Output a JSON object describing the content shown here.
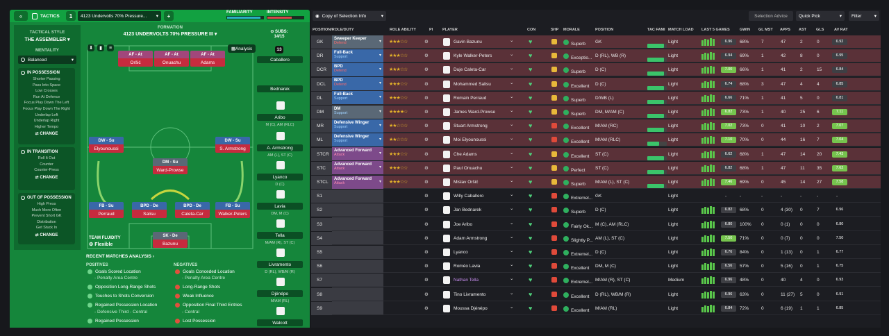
{
  "top": {
    "tab_label": "TACTICS",
    "tactic_number": "1",
    "tactic_name": "4123 Undervolts 70% Pressure...",
    "plus": "+",
    "familiarity_label": "FAMILIARITY",
    "intensity_label": "INTENSITY",
    "familiarity_level": 0.92,
    "intensity_level": 0.68,
    "copy_selection": "Copy of Selection Info",
    "selection_advice": "Selection Advice",
    "quick_pick": "Quick Pick",
    "filter": "Filter",
    "colors": {
      "green": "#12a141",
      "dark": "#0e6e2d"
    }
  },
  "style": {
    "heading": "TACTICAL STYLE",
    "name": "THE ASSEMBLER",
    "mentality_label": "MENTALITY",
    "mentality_value": "Balanced",
    "in_possession": {
      "title": "IN POSSESSION",
      "items": [
        "Shorter Passing",
        "Pass Into Space",
        "Low Crosses",
        "Run At Defence",
        "Focus Play Down The Left",
        "Focus Play Down The Right",
        "Underlap Left",
        "Underlap Right",
        "Higher Tempo"
      ],
      "change": "CHANGE"
    },
    "in_transition": {
      "title": "IN TRANSITION",
      "items": [
        "Roll It Out",
        "Counter",
        "Counter-Press"
      ],
      "change": "CHANGE"
    },
    "out_of_possession": {
      "title": "OUT OF POSSESSION",
      "items": [
        "High Press",
        "Much More Often",
        "Prevent Short GK",
        "Distribution",
        "Get Stuck In"
      ],
      "change": "CHANGE"
    }
  },
  "formation": {
    "label": "FORMATION",
    "name": "4123 UNDERVOLTS 70% PRESSURE III",
    "analysis": "Analysis",
    "subs_label": "SUBS:",
    "subs_value": "14/15",
    "fluidity_label": "TEAM FLUIDITY",
    "fluidity_value": "Flexible",
    "players": [
      {
        "role": "AF - At",
        "name": "Oršić",
        "color": "#a1477b"
      },
      {
        "role": "AF - At",
        "name": "Onuachu",
        "color": "#a1477b"
      },
      {
        "role": "AF - At",
        "name": "Adams",
        "color": "#a1477b"
      },
      {
        "role": "DW - Su",
        "name": "Elyounoussi",
        "color": "#3968a8"
      },
      {
        "role": "DW - Su",
        "name": "S. Armstrong",
        "color": "#3968a8"
      },
      {
        "role": "DM - Su",
        "name": "Ward-Prowse",
        "color": "#5a6876"
      },
      {
        "role": "FB - Su",
        "name": "Perraud",
        "color": "#3968a8"
      },
      {
        "role": "BPD - De",
        "name": "Salisu",
        "color": "#3968a8"
      },
      {
        "role": "BPD - De",
        "name": "Caleta-Car",
        "color": "#3968a8"
      },
      {
        "role": "FB - Su",
        "name": "Walker-Peters",
        "color": "#3968a8"
      },
      {
        "role": "SK - De",
        "name": "Bazunu",
        "color": "#5a6876"
      }
    ],
    "kit_number": "13"
  },
  "subs": [
    {
      "name": "Caballero",
      "pos": "GK"
    },
    {
      "name": "Bednarek",
      "pos": "D (C)"
    },
    {
      "name": "Aribo",
      "pos": "M (C), AM (RLC)"
    },
    {
      "name": "A. Armstrong",
      "pos": "AM (L), ST (C)"
    },
    {
      "name": "Lyanco",
      "pos": "D (C)"
    },
    {
      "name": "Lavia",
      "pos": "DM, M (C)"
    },
    {
      "name": "Tella",
      "pos": "M/AM (R), ST (C)"
    },
    {
      "name": "Livramento",
      "pos": "D (RL), WB/M (R)"
    },
    {
      "name": "Djénépo",
      "pos": "M/AM (RL)"
    },
    {
      "name": "Walcott",
      "pos": ""
    }
  ],
  "analysis": {
    "title": "RECENT MATCHES ANALYSIS",
    "positives_label": "POSITIVES",
    "negatives_label": "NEGATIVES",
    "positives": [
      "Goals Scored Location",
      "- Penalty Area Centre",
      "Opposition Long-Range Shots",
      "Touches to Shots Conversion",
      "Regained Possession Location",
      "- Defensive Third - Central",
      "Regained Possession"
    ],
    "negatives": [
      "Goals Conceded Location",
      "- Penalty Area Centre",
      "Long-Range Shots",
      "Weak Influence",
      "Opposition Final Third Entries",
      "- Central",
      "Lost Possession"
    ]
  },
  "table": {
    "headers": [
      "POSITION/ROLE/DUTY",
      "ROLE ABILITY",
      "PI",
      "PLAYER",
      "CON",
      "SHP",
      "MORALE",
      "POSITION",
      "TAC FAMI",
      "MATCH LOAD",
      "LAST 5 GAMES",
      "GWIN",
      "GL MST",
      "APPS",
      "AST",
      "GLS",
      "AV RAT"
    ],
    "rows": [
      {
        "pos": "GK",
        "role": "Sweeper Keeper",
        "duty": "Defend",
        "stars": "★★★☆☆",
        "name": "Gavin Bazunu",
        "morale": "Superb",
        "position": "GK",
        "load": "Light",
        "rating": "6.96",
        "gwin": "68%",
        "glm": "7",
        "apps": "47",
        "ast": "2",
        "gls": "0",
        "av": "6.92",
        "bg": "#5a3138",
        "rolecol": "#5a6876",
        "ship": "#e8b83a",
        "vcls": "vgray"
      },
      {
        "pos": "DR",
        "role": "Full-Back",
        "duty": "Support",
        "stars": "★★★☆☆",
        "name": "Kyle Walker-Peters",
        "morale": "Exceptio...",
        "position": "D (RL), WB (R)",
        "load": "Light",
        "rating": "6.94",
        "gwin": "69%",
        "glm": "1",
        "apps": "42",
        "ast": "8",
        "gls": "0",
        "av": "6.95",
        "bg": "#5a3138",
        "rolecol": "#3968a8",
        "ship": "#e8b83a",
        "vcls": "vgray"
      },
      {
        "pos": "DCR",
        "role": "BPD",
        "duty": "Defend",
        "stars": "★★★☆☆",
        "name": "Duje Caleta-Car",
        "morale": "Superb",
        "position": "D (C)",
        "load": "Light",
        "rating": "7.00",
        "gwin": "66%",
        "glm": "1",
        "apps": "41",
        "ast": "2",
        "gls": "15",
        "av": "6.84",
        "bg": "#5a3138",
        "rolecol": "#3968a8",
        "ship": "#e8b83a",
        "vcls": "vbright"
      },
      {
        "pos": "DCL",
        "role": "BPD",
        "duty": "Defend",
        "stars": "★★★☆☆",
        "name": "Mohammed Salisu",
        "morale": "Excellent",
        "position": "D (C)",
        "load": "Light",
        "rating": "6.74",
        "gwin": "68%",
        "glm": "3",
        "apps": "47",
        "ast": "4",
        "gls": "4",
        "av": "6.85",
        "bg": "#5a3138",
        "rolecol": "#3968a8",
        "ship": "#e8b83a",
        "vcls": "vgray"
      },
      {
        "pos": "DL",
        "role": "Full-Back",
        "duty": "Support",
        "stars": "★★★☆☆",
        "name": "Romain Perraud",
        "morale": "Superb",
        "position": "D/WB (L)",
        "load": "Light",
        "rating": "6.66",
        "gwin": "71%",
        "glm": "1",
        "apps": "41",
        "ast": "5",
        "gls": "0",
        "av": "6.81",
        "bg": "#5a3138",
        "rolecol": "#3968a8",
        "ship": "#e8b83a",
        "vcls": "vgray"
      },
      {
        "pos": "DM",
        "role": "DM",
        "duty": "Support",
        "stars": "★★★★☆",
        "name": "James Ward-Prowse",
        "morale": "Superb",
        "position": "DM, M/AM (C)",
        "load": "Light",
        "rating": "6.82",
        "gwin": "73%",
        "glm": "1",
        "apps": "40",
        "ast": "25",
        "gls": "6",
        "av": "7.11",
        "bg": "#5a3138",
        "rolecol": "#5a6876",
        "ship": "#e8b83a",
        "vcls": "vbright"
      },
      {
        "pos": "MR",
        "role": "Defensive Winger",
        "duty": "Support",
        "stars": "★★☆☆☆",
        "name": "Stuart Armstrong",
        "morale": "Excellent",
        "position": "M/AM (RC)",
        "load": "Light",
        "rating": "7.02",
        "gwin": "73%",
        "glm": "0",
        "apps": "41",
        "ast": "10",
        "gls": "2",
        "av": "7.07",
        "bg": "#5a3138",
        "rolecol": "#3968a8",
        "ship": "#e04a3a",
        "vcls": "vbright"
      },
      {
        "pos": "ML",
        "role": "Defensive Winger",
        "duty": "Support",
        "stars": "★★☆☆☆",
        "name": "Moi Elyounoussi",
        "morale": "Excellent",
        "position": "M/AM (RLC)",
        "load": "Light",
        "rating": "7.10",
        "gwin": "70%",
        "glm": "0",
        "apps": "44",
        "ast": "16",
        "gls": "7",
        "av": "7.04",
        "bg": "#5a3138",
        "rolecol": "#3968a8",
        "ship": "#e04a3a",
        "vcls": "vbright"
      },
      {
        "pos": "STCR",
        "role": "Advanced Forward",
        "duty": "Attack",
        "stars": "★★★☆☆",
        "name": "Che Adams",
        "morale": "Excellent",
        "position": "ST (C)",
        "load": "Light",
        "rating": "6.62",
        "gwin": "68%",
        "glm": "1",
        "apps": "47",
        "ast": "14",
        "gls": "20",
        "av": "7.43",
        "bg": "#5a3138",
        "rolecol": "#7d4a8a",
        "ship": "#e8b83a",
        "vcls": "vgray"
      },
      {
        "pos": "STC",
        "role": "Advanced Forward",
        "duty": "Attack",
        "stars": "★★★☆☆",
        "name": "Paul Onuachu",
        "morale": "Perfect",
        "position": "ST (C)",
        "load": "Light",
        "rating": "6.82",
        "gwin": "68%",
        "glm": "1",
        "apps": "47",
        "ast": "11",
        "gls": "35",
        "av": "7.62",
        "bg": "#5a3138",
        "rolecol": "#7d4a8a",
        "ship": "#e8b83a",
        "vcls": "vgray"
      },
      {
        "pos": "STCL",
        "role": "Advanced Forward",
        "duty": "Attack",
        "stars": "★★★☆☆",
        "name": "Mislav Oršić",
        "morale": "Superb",
        "position": "M/AM (L), ST (C)",
        "load": "Light",
        "rating": "7.46",
        "gwin": "69%",
        "glm": "0",
        "apps": "45",
        "ast": "14",
        "gls": "27",
        "av": "7.58",
        "bg": "#5a3138",
        "rolecol": "#7d4a8a",
        "ship": "#e8b83a",
        "vcls": "vbright"
      },
      {
        "pos": "S1",
        "role": "",
        "duty": "",
        "stars": "",
        "name": "Willy Caballero",
        "morale": "Extremel...",
        "position": "GK",
        "load": "Light",
        "rating": "-",
        "gwin": "-",
        "glm": "-",
        "apps": "-",
        "ast": "-",
        "gls": "-",
        "av": "-",
        "bg": "#1c1d22",
        "rolecol": "",
        "ship": "#e04a3a",
        "vcls": ""
      },
      {
        "pos": "S2",
        "role": "",
        "duty": "",
        "stars": "",
        "name": "Jan Bednarek",
        "morale": "Superb",
        "position": "D (C)",
        "load": "Light",
        "rating": "6.82",
        "gwin": "68%",
        "glm": "0",
        "apps": "4 (30)",
        "ast": "0",
        "gls": "7",
        "av": "6.96",
        "bg": "#1c1d22",
        "rolecol": "",
        "ship": "#e04a3a",
        "vcls": "vgray"
      },
      {
        "pos": "S3",
        "role": "",
        "duty": "",
        "stars": "",
        "name": "Joe Aribo",
        "morale": "Fairly Ok...",
        "position": "M (C), AM (RLC)",
        "load": "Light",
        "rating": "6.80",
        "gwin": "100%",
        "glm": "0",
        "apps": "0 (1)",
        "ast": "0",
        "gls": "0",
        "av": "6.80",
        "bg": "#1c1d22",
        "rolecol": "",
        "ship": "#e04a3a",
        "vcls": "vgray"
      },
      {
        "pos": "S4",
        "role": "",
        "duty": "",
        "stars": "",
        "name": "Adam Armstrong",
        "morale": "Slightly P...",
        "position": "AM (L), ST (C)",
        "load": "Light",
        "rating": "7.50",
        "gwin": "71%",
        "glm": "0",
        "apps": "0 (7)",
        "ast": "0",
        "gls": "0",
        "av": "7.50",
        "bg": "#1c1d22",
        "rolecol": "",
        "ship": "#e04a3a",
        "vcls": "vbright"
      },
      {
        "pos": "S5",
        "role": "",
        "duty": "",
        "stars": "",
        "name": "Lyanco",
        "morale": "Extremel...",
        "position": "D (C)",
        "load": "Light",
        "rating": "6.76",
        "gwin": "84%",
        "glm": "0",
        "apps": "1 (13)",
        "ast": "0",
        "gls": "1",
        "av": "6.77",
        "bg": "#1c1d22",
        "rolecol": "",
        "ship": "#e04a3a",
        "vcls": "vgray"
      },
      {
        "pos": "S6",
        "role": "",
        "duty": "",
        "stars": "",
        "name": "Roméo Lavia",
        "morale": "Excellent",
        "position": "DM, M (C)",
        "load": "Light",
        "rating": "6.56",
        "gwin": "57%",
        "glm": "0",
        "apps": "5 (16)",
        "ast": "0",
        "gls": "1",
        "av": "6.75",
        "bg": "#1c1d22",
        "rolecol": "",
        "ship": "#e04a3a",
        "vcls": "vgray"
      },
      {
        "pos": "S7",
        "role": "",
        "duty": "",
        "stars": "",
        "name": "Nathan Tella",
        "morale": "Extremel...",
        "position": "M/AM (R), ST (C)",
        "load": "Medium",
        "rating": "6.96",
        "gwin": "48%",
        "glm": "0",
        "apps": "40",
        "ast": "4",
        "gls": "0",
        "av": "6.93",
        "bg": "#1c1d22",
        "rolecol": "",
        "ship": "#e04a3a",
        "vcls": "vgray"
      },
      {
        "pos": "S8",
        "role": "",
        "duty": "",
        "stars": "",
        "name": "Tino Livramento",
        "morale": "Excellent",
        "position": "D (RL), WB/M (R)",
        "load": "Light",
        "rating": "6.96",
        "gwin": "63%",
        "glm": "0",
        "apps": "11 (27)",
        "ast": "5",
        "gls": "0",
        "av": "6.91",
        "bg": "#1c1d22",
        "rolecol": "",
        "ship": "#e04a3a",
        "vcls": "vgray"
      },
      {
        "pos": "S9",
        "role": "",
        "duty": "",
        "stars": "",
        "name": "Moussa Djénépo",
        "morale": "Excellent",
        "position": "M/AM (RL)",
        "load": "Light",
        "rating": "6.84",
        "gwin": "72%",
        "glm": "0",
        "apps": "6 (19)",
        "ast": "1",
        "gls": "1",
        "av": "6.85",
        "bg": "#1c1d22",
        "rolecol": "",
        "ship": "#e04a3a",
        "vcls": "vgray"
      }
    ]
  }
}
